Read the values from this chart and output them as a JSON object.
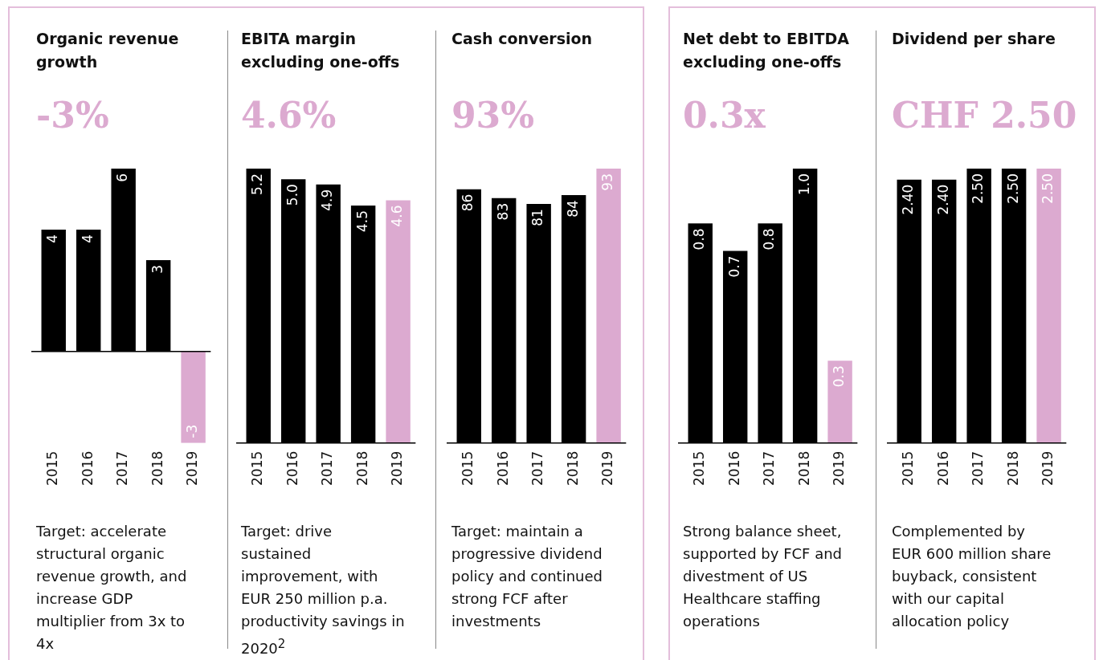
{
  "chart_data": [
    {
      "type": "bar",
      "title": "Organic revenue growth",
      "subtitle": "-3%",
      "categories": [
        "2015",
        "2016",
        "2017",
        "2018",
        "2019"
      ],
      "values": [
        4,
        4,
        6,
        3,
        -3
      ],
      "colors": [
        "#000000",
        "#000000",
        "#000000",
        "#000000",
        "#dcaad0"
      ],
      "value_labels": [
        "4",
        "4",
        "6",
        "3",
        "-3"
      ],
      "tick_labels": "x",
      "annotations": [
        "Target: accelerate structural organic revenue growth, and increase GDP multiplier from 3x to 4x"
      ]
    },
    {
      "type": "bar",
      "title": "EBITA margin excluding one-offs",
      "subtitle": "4.6%",
      "categories": [
        "2015",
        "2016",
        "2017",
        "2018",
        "2019"
      ],
      "values": [
        5.2,
        5.0,
        4.9,
        4.5,
        4.6
      ],
      "colors": [
        "#000000",
        "#000000",
        "#000000",
        "#000000",
        "#dcaad0"
      ],
      "value_labels": [
        "5.2",
        "5.0",
        "4.9",
        "4.5",
        "4.6"
      ],
      "tick_labels": "x",
      "annotations": [
        "Target: drive sustained improvement, with EUR 250 million p.a. productivity savings in 2020$^{2}$"
      ]
    },
    {
      "type": "bar",
      "title": "Cash conversion",
      "subtitle": "93%",
      "categories": [
        "2015",
        "2016",
        "2017",
        "2018",
        "2019"
      ],
      "values": [
        86,
        83,
        81,
        84,
        93
      ],
      "colors": [
        "#000000",
        "#000000",
        "#000000",
        "#000000",
        "#dcaad0"
      ],
      "value_labels": [
        "86",
        "83",
        "81",
        "84",
        "93"
      ],
      "tick_labels": "x",
      "annotations": [
        "Target: maintain a progressive dividend policy and continued strong FCF after investments"
      ]
    },
    {
      "type": "bar",
      "title": "Net debt to EBITDA excluding one-offs",
      "subtitle": "0.3x",
      "categories": [
        "2015",
        "2016",
        "2017",
        "2018",
        "2019"
      ],
      "values": [
        0.8,
        0.7,
        0.8,
        1.0,
        0.3
      ],
      "colors": [
        "#000000",
        "#000000",
        "#000000",
        "#000000",
        "#dcaad0"
      ],
      "value_labels": [
        "0.8",
        "0.7",
        "0.8",
        "1.0",
        "0.3"
      ],
      "tick_labels": "x",
      "annotations": [
        "Strong balance sheet, supported by FCF and divestment of US Healthcare staffing operations"
      ]
    },
    {
      "type": "bar",
      "title": "Dividend per share",
      "subtitle": "CHF 2.50",
      "categories": [
        "2015",
        "2016",
        "2017",
        "2018",
        "2019"
      ],
      "values": [
        2.4,
        2.4,
        2.5,
        2.5,
        2.5
      ],
      "colors": [
        "#000000",
        "#000000",
        "#000000",
        "#000000",
        "#dcaad0"
      ],
      "value_labels": [
        "2.40",
        "2.40",
        "2.50",
        "2.50",
        "2.50"
      ],
      "tick_labels": "x",
      "annotations": [
        "Complemented by EUR 600 million share buyback, consistent with our capital allocation policy"
      ]
    }
  ]
}
